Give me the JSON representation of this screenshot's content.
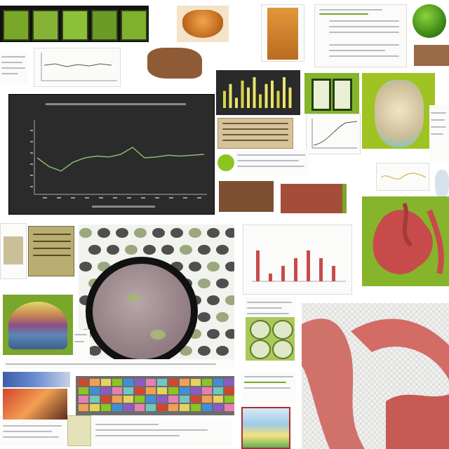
{
  "colors": {
    "chart_bg": "#2b2b2b",
    "chart_line": "#8dbb6a",
    "lime": "#93c11c",
    "tissue_red": "#c84b4b",
    "tissue_brown": "#8a5a3b",
    "organ_gray": "#9b8a8e"
  },
  "icons": {
    "organ": "organ-cross-section-icon",
    "chart": "line-chart-icon",
    "bars": "bar-chart-icon"
  },
  "dark_chart": {
    "title": "",
    "values": [
      12,
      11,
      10.5,
      11.5,
      12,
      12.2,
      12.1,
      12.4,
      13.2,
      12,
      12.1,
      12.3,
      12.2,
      12.3,
      12.4
    ]
  },
  "gold_bars": {
    "values": [
      5,
      7,
      3,
      8,
      6,
      9,
      4,
      7,
      8,
      5,
      9,
      6
    ]
  },
  "red_bars": {
    "values": [
      4,
      1,
      2,
      3,
      4,
      3,
      2
    ]
  }
}
